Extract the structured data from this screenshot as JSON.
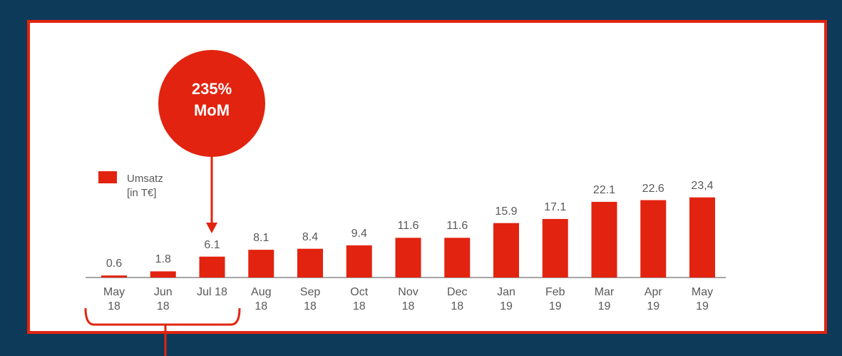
{
  "chart_data": {
    "type": "bar",
    "categories": [
      "May 18",
      "Jun 18",
      "Jul 18",
      "Aug 18",
      "Sep 18",
      "Oct 18",
      "Nov 18",
      "Dec 18",
      "Jan 19",
      "Feb 19",
      "Mar 19",
      "Apr 19",
      "May 19"
    ],
    "series": [
      {
        "name": "Umsatz [in T€]",
        "color": "#e2230f",
        "values": [
          0.6,
          1.8,
          6.1,
          8.1,
          8.4,
          9.4,
          11.6,
          11.6,
          15.9,
          17.1,
          22.1,
          22.6,
          23.4
        ],
        "value_labels": [
          "0.6",
          "1.8",
          "6.1",
          "8.1",
          "8.4",
          "9.4",
          "11.6",
          "11.6",
          "15.9",
          "17.1",
          "22.1",
          "22.6",
          "23,4"
        ]
      }
    ],
    "ylim": [
      0,
      25
    ],
    "annotation": "235% MoM"
  }
}
